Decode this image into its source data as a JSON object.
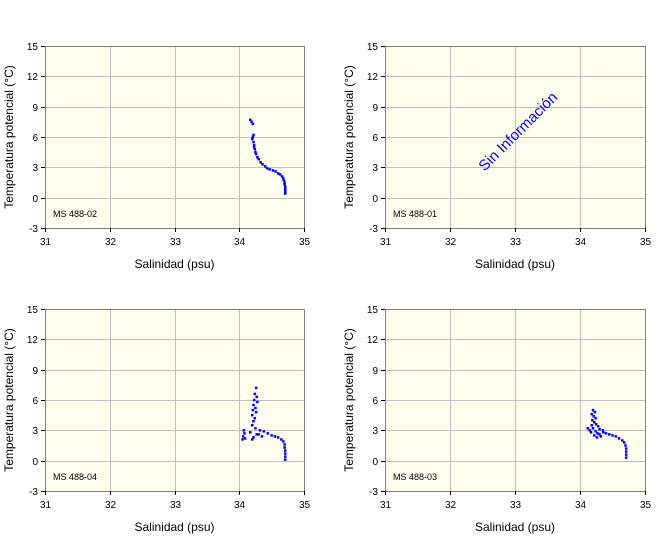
{
  "chart_data": [
    {
      "type": "scatter",
      "station": "MS 488-02",
      "title": "",
      "xlabel": "Salinidad (psu)",
      "ylabel": "Temperatura potencial (°C)",
      "xlim": [
        31,
        35
      ],
      "ylim": [
        -3,
        15
      ],
      "xticks": [
        "31",
        "32",
        "33",
        "34",
        "35"
      ],
      "yticks": [
        "-3",
        "0",
        "3",
        "6",
        "9",
        "12",
        "15"
      ],
      "grid": true,
      "no_data_text": "",
      "series": [
        {
          "name": "MS 488-02",
          "color": "#0000ff",
          "points": [
            [
              34.17,
              7.7
            ],
            [
              34.19,
              7.5
            ],
            [
              34.21,
              7.3
            ],
            [
              34.22,
              6.2
            ],
            [
              34.21,
              6.0
            ],
            [
              34.2,
              5.8
            ],
            [
              34.22,
              5.5
            ],
            [
              34.23,
              5.2
            ],
            [
              34.23,
              5.0
            ],
            [
              34.24,
              4.8
            ],
            [
              34.25,
              4.5
            ],
            [
              34.26,
              4.3
            ],
            [
              34.28,
              4.0
            ],
            [
              34.3,
              3.8
            ],
            [
              34.33,
              3.5
            ],
            [
              34.36,
              3.3
            ],
            [
              34.4,
              3.1
            ],
            [
              34.43,
              2.9
            ],
            [
              34.47,
              2.8
            ],
            [
              34.52,
              2.7
            ],
            [
              34.56,
              2.6
            ],
            [
              34.6,
              2.4
            ],
            [
              34.63,
              2.3
            ],
            [
              34.66,
              2.1
            ],
            [
              34.68,
              1.9
            ],
            [
              34.69,
              1.7
            ],
            [
              34.7,
              1.5
            ],
            [
              34.7,
              1.3
            ],
            [
              34.71,
              1.1
            ],
            [
              34.71,
              0.9
            ],
            [
              34.71,
              0.7
            ],
            [
              34.71,
              0.5
            ],
            [
              34.71,
              0.4
            ]
          ]
        }
      ]
    },
    {
      "type": "scatter",
      "station": "MS 488-01",
      "title": "",
      "xlabel": "Salinidad (psu)",
      "ylabel": "Temperatura potencial (°C)",
      "xlim": [
        31,
        35
      ],
      "ylim": [
        -3,
        15
      ],
      "xticks": [
        "31",
        "32",
        "33",
        "34",
        "35"
      ],
      "yticks": [
        "-3",
        "0",
        "3",
        "6",
        "9",
        "12",
        "15"
      ],
      "grid": true,
      "no_data_text": "Sin Información",
      "series": []
    },
    {
      "type": "scatter",
      "station": "MS 488-04",
      "title": "",
      "xlabel": "Salinidad (psu)",
      "ylabel": "Temperatura potencial (°C)",
      "xlim": [
        31,
        35
      ],
      "ylim": [
        -3,
        15
      ],
      "xticks": [
        "31",
        "32",
        "33",
        "34",
        "35"
      ],
      "yticks": [
        "-3",
        "0",
        "3",
        "6",
        "9",
        "12",
        "15"
      ],
      "grid": true,
      "no_data_text": "",
      "series": [
        {
          "name": "MS 488-04",
          "color": "#0000ff",
          "points": [
            [
              34.26,
              7.2
            ],
            [
              34.24,
              6.6
            ],
            [
              34.27,
              6.3
            ],
            [
              34.23,
              6.0
            ],
            [
              34.28,
              5.8
            ],
            [
              34.22,
              5.5
            ],
            [
              34.25,
              5.2
            ],
            [
              34.21,
              5.0
            ],
            [
              34.26,
              4.8
            ],
            [
              34.2,
              4.5
            ],
            [
              34.24,
              4.2
            ],
            [
              34.22,
              3.9
            ],
            [
              34.2,
              3.5
            ],
            [
              34.25,
              3.2
            ],
            [
              34.17,
              2.8
            ],
            [
              34.27,
              2.6
            ],
            [
              34.22,
              2.3
            ],
            [
              34.2,
              2.1
            ],
            [
              34.32,
              3.0
            ],
            [
              34.38,
              2.9
            ],
            [
              34.44,
              2.7
            ],
            [
              34.5,
              2.5
            ],
            [
              34.55,
              2.4
            ],
            [
              34.6,
              2.3
            ],
            [
              34.65,
              2.1
            ],
            [
              34.68,
              1.9
            ],
            [
              34.7,
              1.6
            ],
            [
              34.7,
              1.3
            ],
            [
              34.71,
              1.0
            ],
            [
              34.71,
              0.7
            ],
            [
              34.71,
              0.4
            ],
            [
              34.71,
              0.1
            ],
            [
              34.06,
              2.4
            ],
            [
              34.08,
              2.7
            ],
            [
              34.07,
              3.0
            ],
            [
              34.05,
              2.1
            ],
            [
              34.09,
              2.2
            ],
            [
              34.3,
              2.6
            ],
            [
              34.35,
              2.4
            ]
          ]
        }
      ]
    },
    {
      "type": "scatter",
      "station": "MS 488-03",
      "title": "",
      "xlabel": "Salinidad (psu)",
      "ylabel": "Temperatura potencial (°C)",
      "xlim": [
        31,
        35
      ],
      "ylim": [
        -3,
        15
      ],
      "xticks": [
        "31",
        "32",
        "33",
        "34",
        "35"
      ],
      "yticks": [
        "-3",
        "0",
        "3",
        "6",
        "9",
        "12",
        "15"
      ],
      "grid": true,
      "no_data_text": "",
      "series": [
        {
          "name": "MS 488-03",
          "color": "#0000ff",
          "points": [
            [
              34.2,
              5.0
            ],
            [
              34.23,
              4.8
            ],
            [
              34.18,
              4.6
            ],
            [
              34.21,
              4.4
            ],
            [
              34.24,
              4.2
            ],
            [
              34.19,
              4.0
            ],
            [
              34.22,
              3.8
            ],
            [
              34.25,
              3.6
            ],
            [
              34.18,
              3.5
            ],
            [
              34.28,
              3.4
            ],
            [
              34.2,
              3.2
            ],
            [
              34.3,
              3.1
            ],
            [
              34.15,
              3.0
            ],
            [
              34.24,
              2.9
            ],
            [
              34.35,
              3.0
            ],
            [
              34.12,
              3.2
            ],
            [
              34.27,
              2.7
            ],
            [
              34.22,
              2.5
            ],
            [
              34.32,
              2.4
            ],
            [
              34.4,
              2.7
            ],
            [
              34.45,
              2.6
            ],
            [
              34.5,
              2.5
            ],
            [
              34.55,
              2.4
            ],
            [
              34.6,
              2.2
            ],
            [
              34.65,
              2.0
            ],
            [
              34.68,
              1.8
            ],
            [
              34.7,
              1.5
            ],
            [
              34.71,
              1.2
            ],
            [
              34.71,
              0.9
            ],
            [
              34.71,
              0.6
            ],
            [
              34.71,
              0.3
            ],
            [
              34.17,
              2.8
            ],
            [
              34.26,
              2.3
            ],
            [
              34.36,
              2.8
            ],
            [
              34.3,
              2.6
            ]
          ]
        }
      ]
    }
  ]
}
